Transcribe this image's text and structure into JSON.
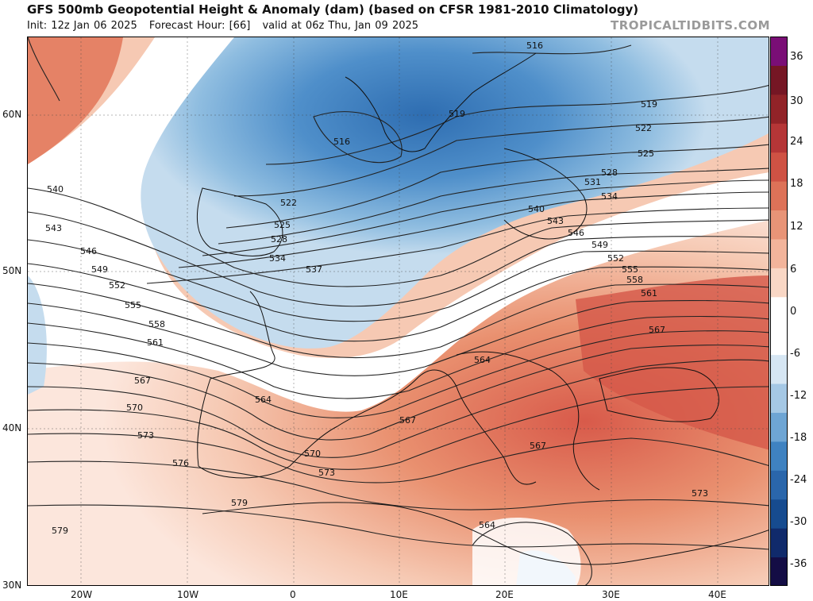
{
  "header": {
    "title": "GFS 500mb Geopotential Height & Anomaly (dam) (based on CFSR 1981-2010 Climatology)",
    "init": "Init: 12z Jan 06 2025",
    "forecast_hour": "Forecast Hour: [66]",
    "valid": "valid at 06z Thu, Jan 09 2025",
    "brand": "TROPICALTIDBITS.COM"
  },
  "map": {
    "lat_labels": [
      "60N",
      "50N",
      "40N",
      "30N"
    ],
    "lon_labels": [
      "20W",
      "10W",
      "0",
      "10E",
      "20E",
      "30E",
      "40E"
    ],
    "contour_labels": [
      "516",
      "516",
      "519",
      "519",
      "522",
      "522",
      "525",
      "525",
      "528",
      "528",
      "531",
      "534",
      "534",
      "537",
      "540",
      "540",
      "543",
      "543",
      "546",
      "546",
      "549",
      "549",
      "552",
      "552",
      "555",
      "555",
      "558",
      "558",
      "561",
      "561",
      "564",
      "564",
      "564",
      "567",
      "567",
      "567",
      "567",
      "570",
      "570",
      "573",
      "573",
      "573",
      "576",
      "579",
      "579"
    ],
    "colors": {
      "strong_negative": "#2e6db1",
      "negative": "#5b97cc",
      "weak_negative": "#c5dcee",
      "neutral": "#ffffff",
      "weak_positive": "#f6c9b3",
      "positive": "#e9906f",
      "strong_positive": "#cb4a40"
    }
  },
  "colorbar": {
    "labels": [
      "36",
      "30",
      "24",
      "18",
      "12",
      "6",
      "0",
      "-6",
      "-12",
      "-18",
      "-24",
      "-30",
      "-36"
    ],
    "colors": [
      "#140d45",
      "#102a6b",
      "#164b8f",
      "#2a66ab",
      "#3f82c1",
      "#6ea5d4",
      "#a5c8e5",
      "#d6e6f3",
      "#ffffff",
      "#ffffff",
      "#f9d7c5",
      "#f2b49b",
      "#e89477",
      "#dd7258",
      "#cf5244",
      "#b53637",
      "#912328",
      "#751624",
      "#7a0e76"
    ]
  }
}
